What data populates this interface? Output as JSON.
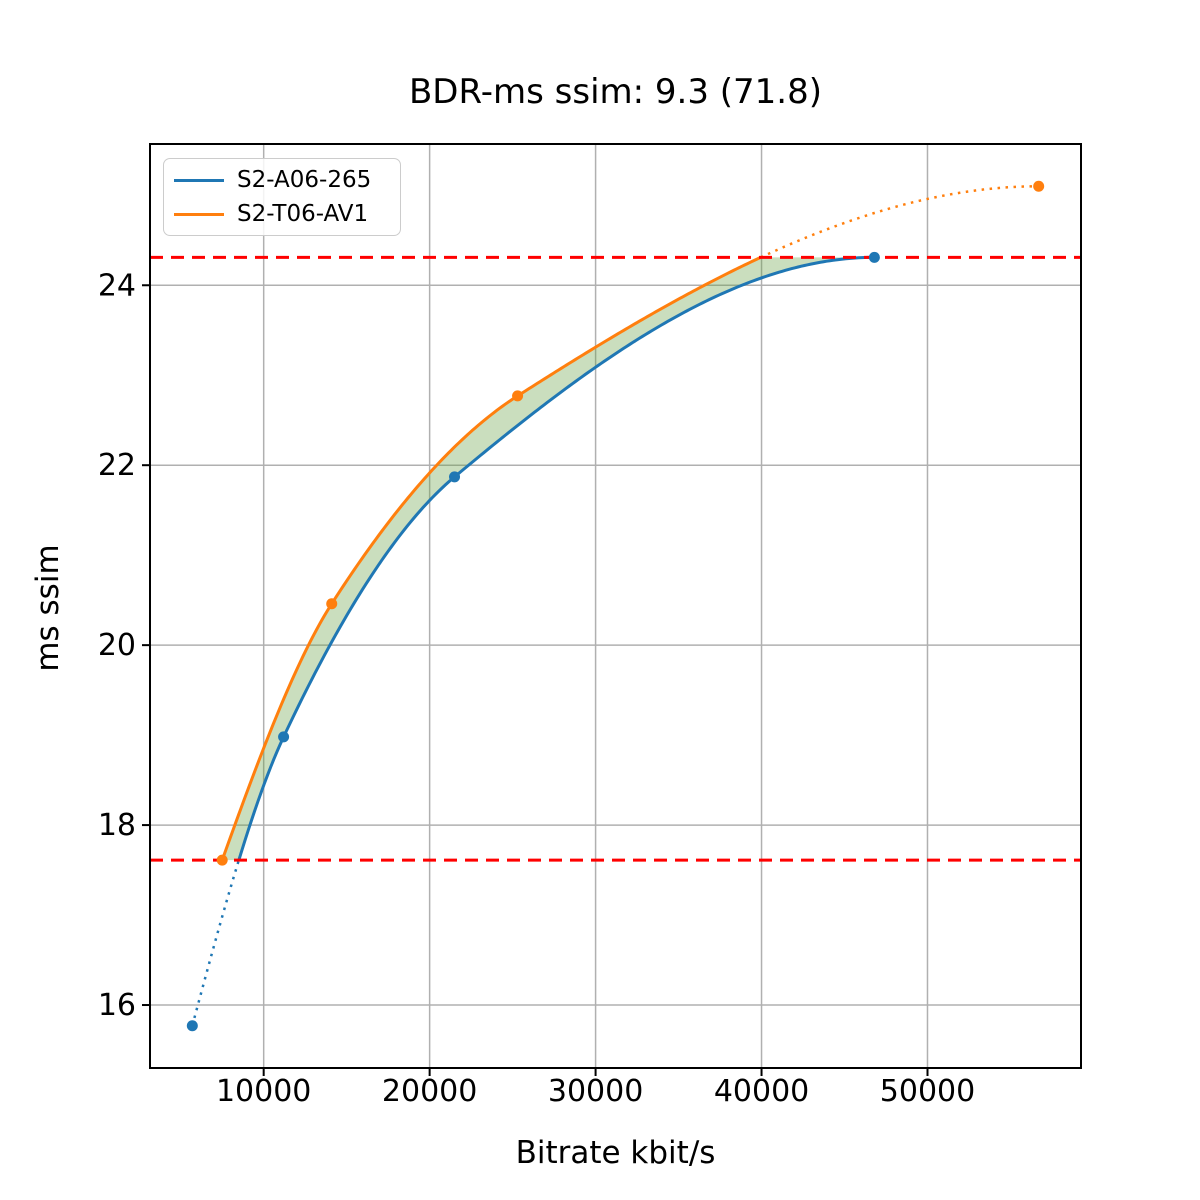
{
  "chart_data": {
    "type": "line",
    "title": "BDR-ms ssim: 9.3 (71.8)",
    "xlabel": "Bitrate kbit/s",
    "ylabel": "ms ssim",
    "xlim": [
      3150,
      59250
    ],
    "ylim": [
      15.3,
      25.57
    ],
    "xticks": [
      10000,
      20000,
      30000,
      40000,
      50000
    ],
    "yticks": [
      16,
      18,
      20,
      22,
      24
    ],
    "grid": true,
    "legend_position": "upper left",
    "series": [
      {
        "name": "S2-A06-265",
        "color": "#1f77b4",
        "points": [
          [
            5700,
            15.77
          ],
          [
            11200,
            18.98
          ],
          [
            21500,
            21.87
          ],
          [
            46800,
            24.31
          ]
        ]
      },
      {
        "name": "S2-T06-AV1",
        "color": "#ff7f0e",
        "points": [
          [
            7500,
            17.61
          ],
          [
            14100,
            20.46
          ],
          [
            25300,
            22.77
          ],
          [
            56700,
            25.1
          ]
        ]
      }
    ],
    "overlap_band": {
      "low": 17.61,
      "high": 24.31,
      "fill_color": "#66a046",
      "fill_opacity": 0.35
    },
    "hlines": [
      {
        "y": 24.31,
        "color": "#ff0000",
        "style": "dashed"
      },
      {
        "y": 17.61,
        "color": "#ff0000",
        "style": "dashed"
      }
    ],
    "colors": {
      "grid": "#b0b0b0",
      "spine": "#000000",
      "background": "#ffffff"
    }
  }
}
